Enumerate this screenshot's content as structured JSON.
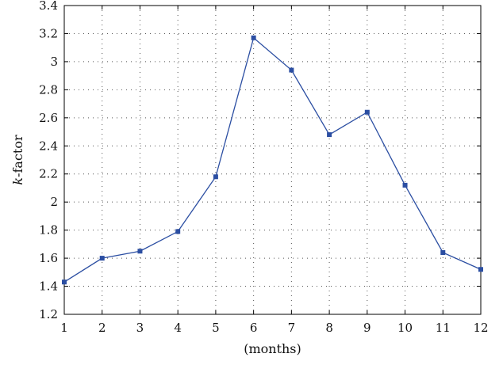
{
  "chart_data": {
    "type": "line",
    "x": [
      1,
      2,
      3,
      4,
      5,
      6,
      7,
      8,
      9,
      10,
      11,
      12
    ],
    "series": [
      {
        "values": [
          1.43,
          1.6,
          1.65,
          1.79,
          2.18,
          3.17,
          2.94,
          2.48,
          2.64,
          2.12,
          1.64,
          1.52
        ],
        "color": "#2b4ea2",
        "marker": "square"
      }
    ],
    "title": "",
    "xlabel": "(months)",
    "ylabel_italic": "k",
    "ylabel_rest": "-factor",
    "xlim": [
      1,
      12
    ],
    "ylim": [
      1.2,
      3.4
    ],
    "xticks": [
      "1",
      "2",
      "3",
      "4",
      "5",
      "6",
      "7",
      "8",
      "9",
      "10",
      "11",
      "12"
    ],
    "yticks": [
      "1.2",
      "1.4",
      "1.6",
      "1.8",
      "2",
      "2.2",
      "2.4",
      "2.6",
      "2.8",
      "3",
      "3.2",
      "3.4"
    ],
    "grid": true,
    "legend": "none"
  }
}
